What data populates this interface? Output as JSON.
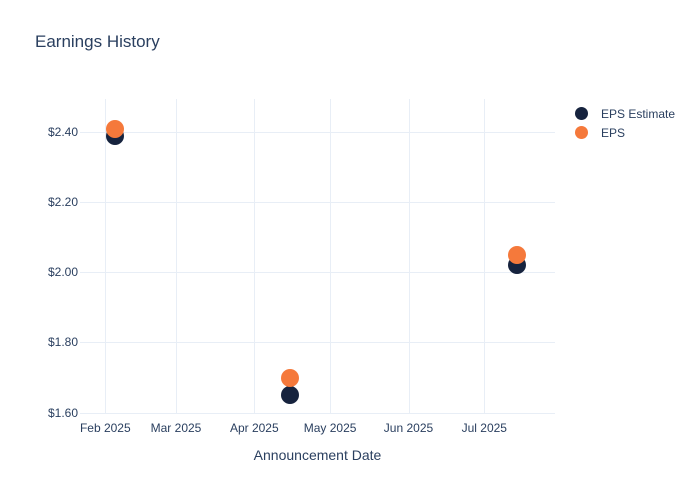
{
  "chart": {
    "title": "Earnings History",
    "x_title": "Announcement Date",
    "text_color": "#2a3f5f",
    "grid_color": "#e8eef6",
    "background": "#ffffff"
  },
  "chart_data": {
    "type": "scatter",
    "title": "Earnings History",
    "xlabel": "Announcement Date",
    "ylabel": "",
    "x": [
      "2025-02-05",
      "2025-04-15",
      "2025-07-14"
    ],
    "series": [
      {
        "name": "EPS Estimate",
        "color": "#16233e",
        "values": [
          2.39,
          1.65,
          2.02
        ]
      },
      {
        "name": "EPS",
        "color": "#f5793b",
        "values": [
          2.41,
          1.7,
          2.05
        ]
      }
    ],
    "x_ticks": [
      {
        "date": "2025-02-01",
        "label": "Feb 2025"
      },
      {
        "date": "2025-03-01",
        "label": "Mar 2025"
      },
      {
        "date": "2025-04-01",
        "label": "Apr 2025"
      },
      {
        "date": "2025-05-01",
        "label": "May 2025"
      },
      {
        "date": "2025-06-01",
        "label": "Jun 2025"
      },
      {
        "date": "2025-07-01",
        "label": "Jul 2025"
      }
    ],
    "y_ticks": [
      {
        "value": 1.6,
        "label": "$1.60"
      },
      {
        "value": 1.8,
        "label": "$1.80"
      },
      {
        "value": 2.0,
        "label": "$2.00"
      },
      {
        "value": 2.2,
        "label": "$2.20"
      },
      {
        "value": 2.4,
        "label": "$2.40"
      }
    ],
    "xlim": [
      "2025-01-22",
      "2025-07-29"
    ],
    "ylim": [
      1.596,
      2.494
    ],
    "grid": true,
    "legend_position": "outside-top-right",
    "marker_size_px": 18
  }
}
